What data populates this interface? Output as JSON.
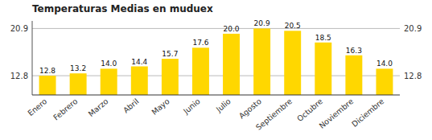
{
  "chart_data": {
    "type": "bar",
    "title": "Temperaturas Medias en muduex",
    "categories": [
      "Enero",
      "Febrero",
      "Marzo",
      "Abril",
      "Mayo",
      "Junio",
      "Julio",
      "Agosto",
      "Septiembre",
      "Octubre",
      "Noviembre",
      "Diciembre"
    ],
    "values": [
      12.8,
      13.2,
      14.0,
      14.4,
      15.7,
      17.6,
      20.0,
      20.9,
      20.5,
      18.5,
      16.3,
      14.0
    ],
    "value_labels": [
      "12.8",
      "13.2",
      "14.0",
      "14.4",
      "15.7",
      "17.6",
      "20.0",
      "20.9",
      "20.5",
      "18.5",
      "16.3",
      "14.0"
    ],
    "color": "#FFD700",
    "ylim": [
      9.5,
      22.2
    ],
    "yticks": [
      12.8,
      20.9
    ],
    "y2lim": [
      9.5,
      22.2
    ],
    "y2ticks": [
      12.8,
      20.9
    ],
    "grid": true,
    "data_labels": true
  }
}
